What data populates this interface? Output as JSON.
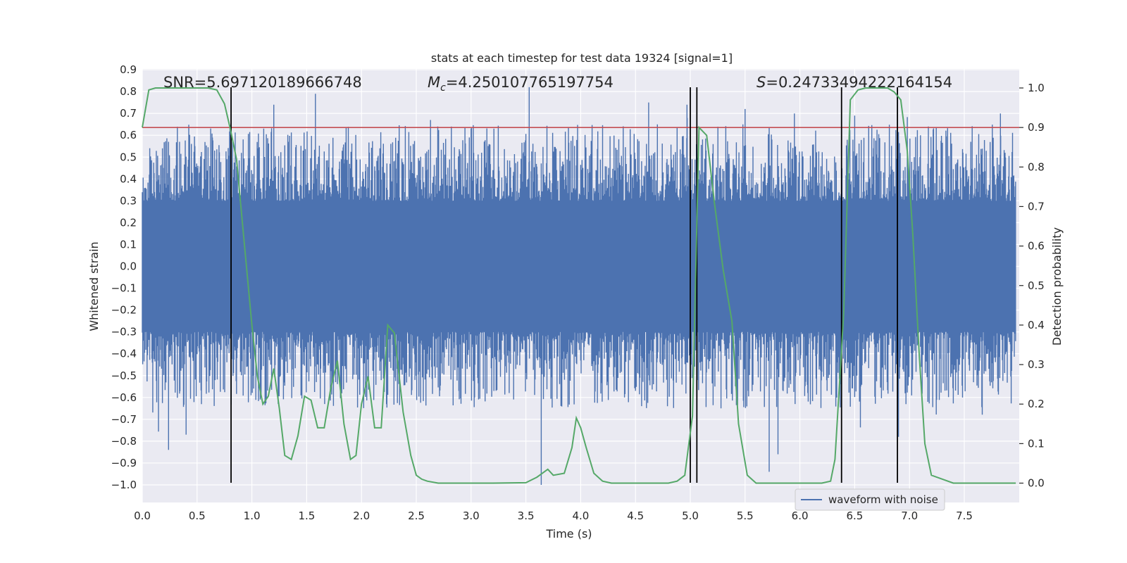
{
  "chart_data": {
    "type": "line",
    "title": "stats at each timestep for test data 19324 [signal=1]",
    "xlabel": "Time (s)",
    "ylabel_left": "Whitened strain",
    "ylabel_right": "Detection probability",
    "xlim": [
      0.0,
      8.0
    ],
    "ylim_left": [
      -1.09,
      0.92
    ],
    "ylim_right": [
      -0.05,
      1.045
    ],
    "x_ticks": [
      0.0,
      0.5,
      1.0,
      1.5,
      2.0,
      2.5,
      3.0,
      3.5,
      4.0,
      4.5,
      5.0,
      5.5,
      6.0,
      6.5,
      7.0,
      7.5
    ],
    "x_tick_labels": [
      "0.0",
      "0.5",
      "1.0",
      "1.5",
      "2.0",
      "2.5",
      "3.0",
      "3.5",
      "4.0",
      "4.5",
      "5.0",
      "5.5",
      "6.0",
      "6.5",
      "7.0",
      "7.5"
    ],
    "y_left_ticks": [
      0.9,
      0.8,
      0.7,
      0.6,
      0.5,
      0.4,
      0.3,
      0.2,
      0.1,
      0.0,
      -0.1,
      -0.2,
      -0.3,
      -0.4,
      -0.5,
      -0.6,
      -0.7,
      -0.8,
      -0.9,
      -1.0
    ],
    "y_left_tick_labels": [
      "0.9",
      "0.8",
      "0.7",
      "0.6",
      "0.5",
      "0.4",
      "0.3",
      "0.2",
      "0.1",
      "0.0",
      "−0.1",
      "−0.2",
      "−0.3",
      "−0.4",
      "−0.5",
      "−0.6",
      "−0.7",
      "−0.8",
      "−0.9",
      "−1.0"
    ],
    "y_right_ticks": [
      1.0,
      0.9,
      0.8,
      0.7,
      0.6,
      0.5,
      0.4,
      0.3,
      0.2,
      0.1,
      0.0
    ],
    "y_right_tick_labels": [
      "1.0",
      "0.9",
      "0.8",
      "0.7",
      "0.6",
      "0.5",
      "0.4",
      "0.3",
      "0.2",
      "0.1",
      "0.0"
    ],
    "threshold": 0.9,
    "event_lines": [
      0.81,
      5.0,
      5.06,
      6.38,
      6.89
    ],
    "annotations": {
      "snr": "SNR=5.697120189666748",
      "mc_symbol": "M",
      "mc_sub": "c",
      "mc_value": "=4.250107765197754",
      "s_symbol": "S",
      "s_value": "=0.24733494222164154"
    },
    "series": [
      {
        "name": "waveform with noise",
        "axis": "left",
        "color": "#4c72b0",
        "note": "dense noisy strain series ~ ±0.3 core with spikes up to ~0.82 and down to ~-1.0",
        "spikes": [
          [
            0.24,
            -0.84
          ],
          [
            0.4,
            -0.77
          ],
          [
            1.2,
            0.74
          ],
          [
            1.58,
            0.79
          ],
          [
            2.63,
            0.67
          ],
          [
            3.53,
            0.82
          ],
          [
            3.64,
            -1.0
          ],
          [
            4.62,
            0.75
          ],
          [
            4.97,
            0.74
          ],
          [
            5.5,
            0.72
          ],
          [
            5.72,
            -0.94
          ],
          [
            5.8,
            -0.86
          ],
          [
            5.95,
            0.7
          ],
          [
            6.5,
            0.69
          ],
          [
            6.9,
            -0.78
          ],
          [
            7.1,
            0.6
          ],
          [
            7.83,
            0.7
          ]
        ]
      },
      {
        "name": "detection probability",
        "axis": "right",
        "color": "#55a868",
        "x": [
          0.0,
          0.06,
          0.12,
          0.2,
          0.3,
          0.4,
          0.5,
          0.6,
          0.68,
          0.75,
          0.8,
          0.86,
          0.9,
          0.95,
          1.0,
          1.05,
          1.1,
          1.15,
          1.2,
          1.25,
          1.3,
          1.36,
          1.42,
          1.48,
          1.54,
          1.6,
          1.66,
          1.72,
          1.78,
          1.84,
          1.9,
          1.95,
          2.0,
          2.06,
          2.12,
          2.18,
          2.24,
          2.3,
          2.38,
          2.45,
          2.5,
          2.55,
          2.6,
          2.7,
          2.9,
          3.2,
          3.5,
          3.6,
          3.7,
          3.75,
          3.85,
          3.92,
          3.96,
          4.0,
          4.05,
          4.12,
          4.2,
          4.28,
          4.35,
          4.42,
          4.5,
          4.6,
          4.7,
          4.8,
          4.88,
          4.95,
          5.02,
          5.08,
          5.15,
          5.22,
          5.3,
          5.38,
          5.44,
          5.52,
          5.6,
          5.8,
          6.0,
          6.2,
          6.28,
          6.32,
          6.4,
          6.46,
          6.53,
          6.6,
          6.7,
          6.8,
          6.86,
          6.92,
          6.98,
          7.03,
          7.09,
          7.14,
          7.2,
          7.4,
          7.6,
          7.8,
          7.97
        ],
        "values": [
          0.9,
          0.995,
          1.0,
          1.0,
          1.0,
          1.0,
          1.0,
          1.0,
          0.995,
          0.96,
          0.9,
          0.82,
          0.7,
          0.55,
          0.4,
          0.27,
          0.2,
          0.22,
          0.29,
          0.19,
          0.07,
          0.06,
          0.12,
          0.22,
          0.21,
          0.14,
          0.14,
          0.24,
          0.31,
          0.15,
          0.06,
          0.07,
          0.2,
          0.27,
          0.14,
          0.14,
          0.4,
          0.38,
          0.18,
          0.07,
          0.02,
          0.01,
          0.005,
          0.0,
          0.0,
          0.0,
          0.001,
          0.015,
          0.035,
          0.02,
          0.025,
          0.09,
          0.165,
          0.14,
          0.09,
          0.025,
          0.005,
          0.0,
          0.0,
          0.0,
          0.0,
          0.0,
          0.0,
          0.0,
          0.005,
          0.02,
          0.17,
          0.9,
          0.88,
          0.71,
          0.54,
          0.41,
          0.15,
          0.02,
          0.0,
          0.0,
          0.0,
          0.0,
          0.005,
          0.06,
          0.43,
          0.97,
          0.995,
          1.0,
          1.0,
          1.0,
          0.99,
          0.97,
          0.84,
          0.63,
          0.32,
          0.1,
          0.02,
          0.0,
          0.0,
          0.0,
          0.0
        ]
      }
    ],
    "legend": {
      "label": "waveform with noise",
      "placement": "lower-right"
    },
    "grid": true
  }
}
